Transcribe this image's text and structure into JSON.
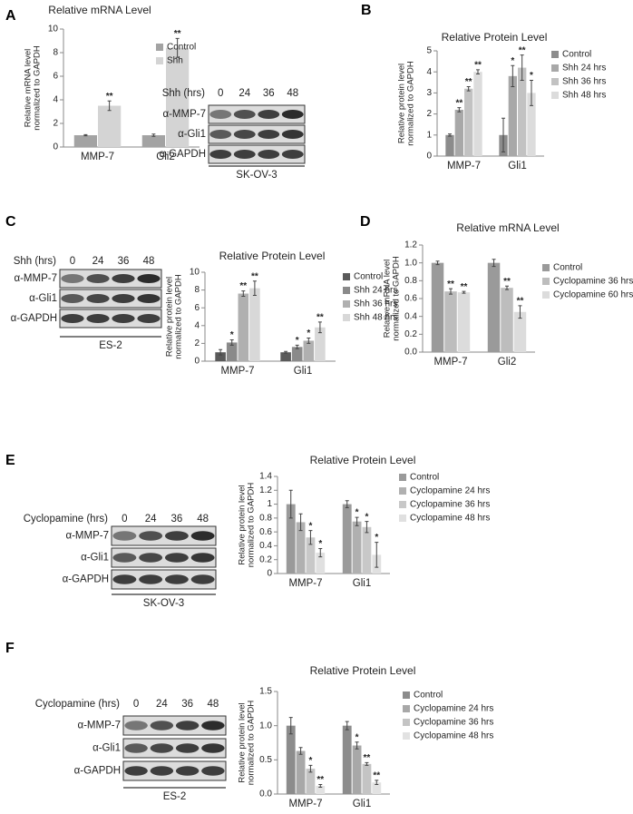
{
  "panel_labels": [
    "A",
    "B",
    "C",
    "D",
    "E",
    "F"
  ],
  "chart_data": [
    {
      "type": "bar",
      "title": "Relative mRNA Level",
      "ylabel": [
        "Relative mRNA level",
        "normalized to GAPDH"
      ],
      "categories": [
        "MMP-7",
        "Gli2"
      ],
      "ylim": [
        0,
        10
      ],
      "yticks": [
        0,
        2,
        4,
        6,
        8,
        10
      ],
      "series": [
        {
          "name": "Control",
          "color": "#a3a3a3",
          "values": [
            1.0,
            1.0
          ],
          "errors": [
            0.05,
            0.1
          ],
          "stars": [
            null,
            null
          ]
        },
        {
          "name": "Shh",
          "color": "#d4d4d4",
          "values": [
            3.5,
            8.4
          ],
          "errors": [
            0.4,
            0.8
          ],
          "stars": [
            "**",
            "**"
          ]
        }
      ]
    },
    {
      "type": "bar",
      "title": "Relative Protein Level",
      "ylabel": [
        "Relative protein level",
        "normalized to GAPDH"
      ],
      "categories": [
        "MMP-7",
        "Gli1"
      ],
      "ylim": [
        0,
        5
      ],
      "yticks": [
        0,
        1,
        2,
        3,
        4,
        5
      ],
      "series": [
        {
          "name": "Control",
          "color": "#8c8c8c",
          "values": [
            1.0,
            1.0
          ],
          "errors": [
            0.05,
            0.8
          ],
          "stars": [
            null,
            null
          ]
        },
        {
          "name": "Shh 24 hrs",
          "color": "#a8a8a8",
          "values": [
            2.2,
            3.8
          ],
          "errors": [
            0.1,
            0.5
          ],
          "stars": [
            "**",
            "*"
          ]
        },
        {
          "name": "Shh 36 hrs",
          "color": "#c2c2c2",
          "values": [
            3.2,
            4.2
          ],
          "errors": [
            0.1,
            0.6
          ],
          "stars": [
            "**",
            "**"
          ]
        },
        {
          "name": "Shh 48 hrs",
          "color": "#dcdcdc",
          "values": [
            4.0,
            3.0
          ],
          "errors": [
            0.1,
            0.6
          ],
          "stars": [
            "**",
            "*"
          ]
        }
      ]
    },
    {
      "type": "bar",
      "title": "Relative  Protein  Level",
      "ylabel": [
        "Relative protein level",
        "normalized to GAPDH"
      ],
      "categories": [
        "MMP-7",
        "Gli1"
      ],
      "ylim": [
        0,
        10
      ],
      "yticks": [
        0,
        2,
        4,
        6,
        8,
        10
      ],
      "series": [
        {
          "name": "Control",
          "color": "#5a5a5a",
          "values": [
            1.0,
            1.0
          ],
          "errors": [
            0.3,
            0.1
          ],
          "stars": [
            null,
            null
          ]
        },
        {
          "name": "Shh 24 hrs",
          "color": "#8a8a8a",
          "values": [
            2.1,
            1.6
          ],
          "errors": [
            0.3,
            0.2
          ],
          "stars": [
            "*",
            "*"
          ]
        },
        {
          "name": "Shh 36 hrs",
          "color": "#b0b0b0",
          "values": [
            7.6,
            2.3
          ],
          "errors": [
            0.3,
            0.3
          ],
          "stars": [
            "**",
            "*"
          ]
        },
        {
          "name": "Shh 48 hrs",
          "color": "#d8d8d8",
          "values": [
            8.2,
            3.8
          ],
          "errors": [
            0.8,
            0.6
          ],
          "stars": [
            "**",
            "**"
          ]
        }
      ]
    },
    {
      "type": "bar",
      "title": "Relative mRNA Level",
      "ylabel": [
        "Relative mRNA level",
        "normalized to GAPDH"
      ],
      "categories": [
        "MMP-7",
        "Gli2"
      ],
      "ylim": [
        0,
        1.2
      ],
      "yticks": [
        {
          "value": 0,
          "label": "0.0"
        },
        0.2,
        0.4,
        0.6,
        0.8,
        {
          "value": 1,
          "label": "1.0"
        },
        1.2
      ],
      "series": [
        {
          "name": "Control",
          "color": "#9a9a9a",
          "values": [
            1.0,
            1.0
          ],
          "errors": [
            0.02,
            0.04
          ],
          "stars": [
            null,
            null
          ]
        },
        {
          "name": "Cyclopamine 36 hrs",
          "color": "#bdbdbd",
          "values": [
            0.68,
            0.72
          ],
          "errors": [
            0.03,
            0.02
          ],
          "stars": [
            "**",
            "**"
          ]
        },
        {
          "name": "Cyclopamine 60 hrs",
          "color": "#dcdcdc",
          "values": [
            0.67,
            0.45
          ],
          "errors": [
            0.01,
            0.07
          ],
          "stars": [
            "**",
            "**"
          ]
        }
      ]
    },
    {
      "type": "bar",
      "title": "Relative Protein Level",
      "ylabel": [
        "Relative protein level",
        "normalized to GAPDH"
      ],
      "categories": [
        "MMP-7",
        "Gli1"
      ],
      "ylim": [
        0,
        1.4
      ],
      "yticks": [
        0,
        0.2,
        0.4,
        0.6,
        0.8,
        1,
        1.2,
        1.4
      ],
      "series": [
        {
          "name": "Control",
          "color": "#9a9a9a",
          "values": [
            1.0,
            1.0
          ],
          "errors": [
            0.2,
            0.05
          ],
          "stars": [
            null,
            null
          ]
        },
        {
          "name": "Cyclopamine 24 hrs",
          "color": "#b0b0b0",
          "values": [
            0.74,
            0.75
          ],
          "errors": [
            0.12,
            0.06
          ],
          "stars": [
            null,
            "*"
          ]
        },
        {
          "name": "Cyclopamine 36 hrs",
          "color": "#c8c8c8",
          "values": [
            0.52,
            0.67
          ],
          "errors": [
            0.1,
            0.08
          ],
          "stars": [
            "*",
            "*"
          ]
        },
        {
          "name": "Cyclopamine 48 hrs",
          "color": "#e0e0e0",
          "values": [
            0.3,
            0.27
          ],
          "errors": [
            0.06,
            0.18
          ],
          "stars": [
            "*",
            "*"
          ]
        }
      ]
    },
    {
      "type": "bar",
      "title": "Relative Protein Level",
      "ylabel": [
        "Relative protein level",
        "normalized to GAPDH"
      ],
      "categories": [
        "MMP-7",
        "Gli1"
      ],
      "ylim": [
        0,
        1.5
      ],
      "yticks": [
        {
          "value": 0,
          "label": "0.0"
        },
        0.5,
        {
          "value": 1,
          "label": "1.0"
        },
        1.5
      ],
      "series": [
        {
          "name": "Control",
          "color": "#8c8c8c",
          "values": [
            1.0,
            1.0
          ],
          "errors": [
            0.12,
            0.06
          ],
          "stars": [
            null,
            null
          ]
        },
        {
          "name": "Cyclopamine 24 hrs",
          "color": "#a8a8a8",
          "values": [
            0.63,
            0.71
          ],
          "errors": [
            0.05,
            0.05
          ],
          "stars": [
            null,
            "*"
          ]
        },
        {
          "name": "Cyclopamine 36 hrs",
          "color": "#c4c4c4",
          "values": [
            0.37,
            0.44
          ],
          "errors": [
            0.05,
            0.02
          ],
          "stars": [
            "*",
            "**"
          ]
        },
        {
          "name": "Cyclopamine 48 hrs",
          "color": "#e2e2e2",
          "values": [
            0.12,
            0.17
          ],
          "errors": [
            0.02,
            0.03
          ],
          "stars": [
            "**",
            "**"
          ]
        }
      ]
    }
  ],
  "blots": [
    {
      "header": "Shh (hrs)",
      "lanes": [
        "0",
        "24",
        "36",
        "48"
      ],
      "rows": [
        "α-MMP-7",
        "α-Gli1",
        "α-GAPDH"
      ],
      "cell_line": "SK-OV-3"
    },
    {
      "header": "Shh (hrs)",
      "lanes": [
        "0",
        "24",
        "36",
        "48"
      ],
      "rows": [
        "α-MMP-7",
        "α-Gli1",
        "α-GAPDH"
      ],
      "cell_line": "ES-2"
    },
    {
      "header": "Cyclopamine (hrs)",
      "lanes": [
        "0",
        "24",
        "36",
        "48"
      ],
      "rows": [
        "α-MMP-7",
        "α-Gli1",
        "α-GAPDH"
      ],
      "cell_line": "SK-OV-3"
    },
    {
      "header": "Cyclopamine (hrs)",
      "lanes": [
        "0",
        "24",
        "36",
        "48"
      ],
      "rows": [
        "α-MMP-7",
        "α-Gli1",
        "α-GAPDH"
      ],
      "cell_line": "ES-2"
    }
  ]
}
